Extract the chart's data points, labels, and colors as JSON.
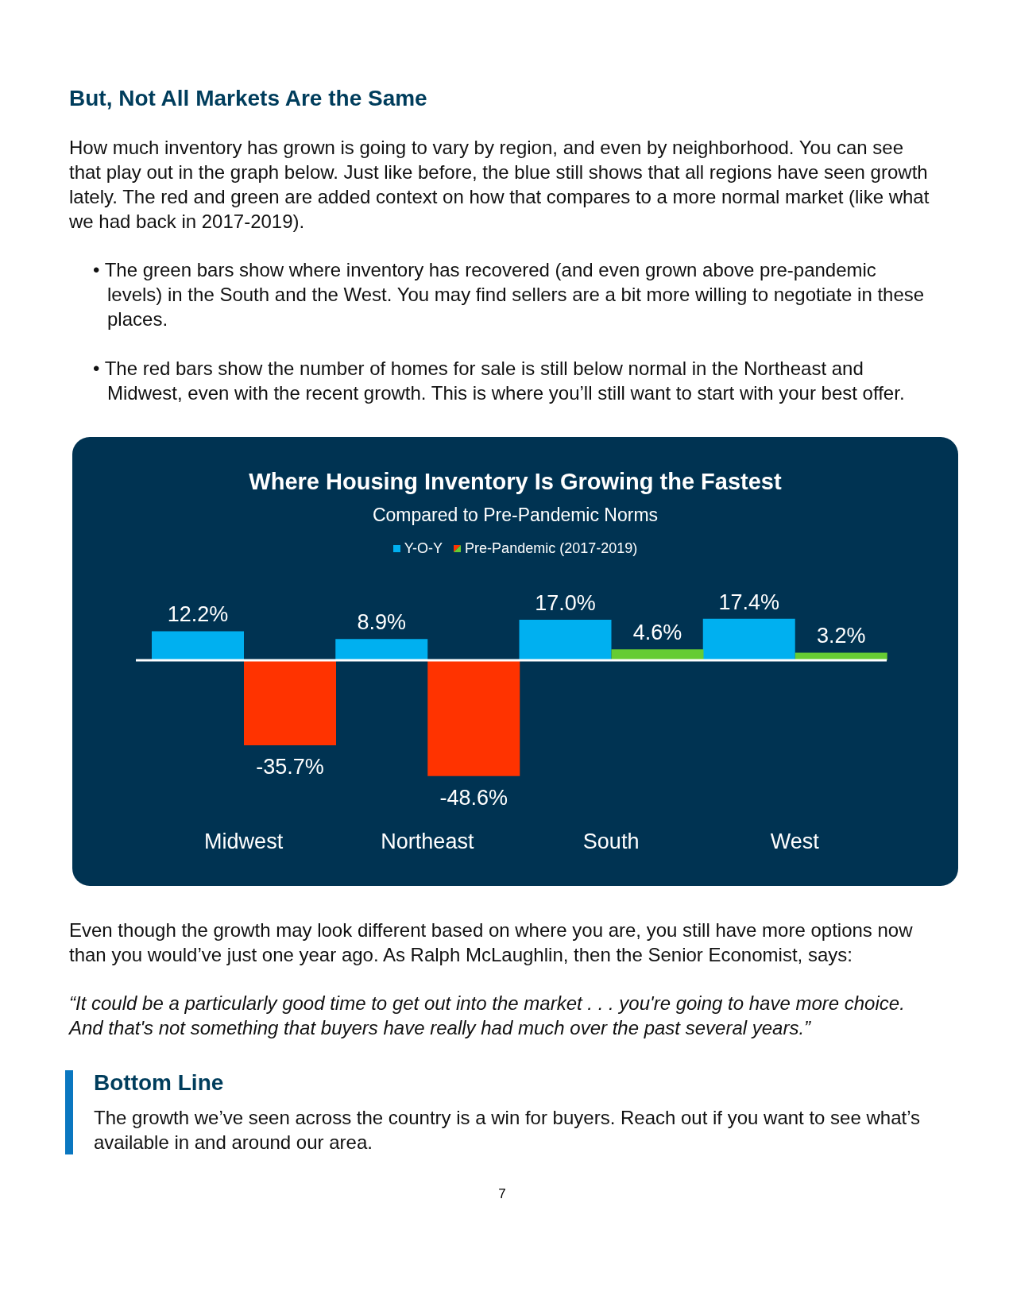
{
  "chart_data": {
    "type": "bar",
    "title": "Where Housing Inventory Is Growing the Fastest",
    "subtitle": "Compared to Pre-Pandemic Norms",
    "categories": [
      "Midwest",
      "Northeast",
      "South",
      "West"
    ],
    "series": [
      {
        "name": "Y-O-Y",
        "color": "#00b0f0",
        "values": [
          12.2,
          8.9,
          17.0,
          17.4
        ],
        "value_labels": [
          "12.2%",
          "8.9%",
          "17.0%",
          "17.4%"
        ]
      },
      {
        "name": "Pre-Pandemic (2017-2019)",
        "colors": [
          "#ff3300",
          "#ff3300",
          "#66cc33",
          "#66cc33"
        ],
        "values": [
          -35.7,
          -48.6,
          4.6,
          3.2
        ],
        "value_labels": [
          "-35.7%",
          "-48.6%",
          "4.6%",
          "3.2%"
        ]
      }
    ],
    "legend": "top",
    "annotations": [
      "But, Not All Markets Are the Same",
      "How much inventory has grown is going to vary by region, and even by neighborhood. You can see that play out in the graph below. Just like before, the blue still shows that all regions have seen growth lately. The red and green are added context on how that compares to a more normal market (like what we had back in 2017-2019).",
      "• The green bars show where inventory has recovered (and even grown above pre-pandemic levels) in the South and the West. You may find sellers are a bit more willing to negotiate in these places.",
      "• The red bars show the number of homes for sale is still below normal in the Northeast and Midwest, even with the recent growth. This is where you’ll still want to start with your best offer.",
      "Even though the growth may look different based on where you are, you still have more options now than you would’ve just one year ago. As Ralph McLaughlin, then the Senior Economist, says:",
      "“It could be a particularly good time to get out into the market . . . you're going to have more choice. And that's not something that buyers have really had much over the past several years.”",
      "Bottom Line",
      "The growth we’ve seen across the country is a win for buyers. Reach out if you want to see what’s available in and around our area.",
      "7"
    ]
  }
}
